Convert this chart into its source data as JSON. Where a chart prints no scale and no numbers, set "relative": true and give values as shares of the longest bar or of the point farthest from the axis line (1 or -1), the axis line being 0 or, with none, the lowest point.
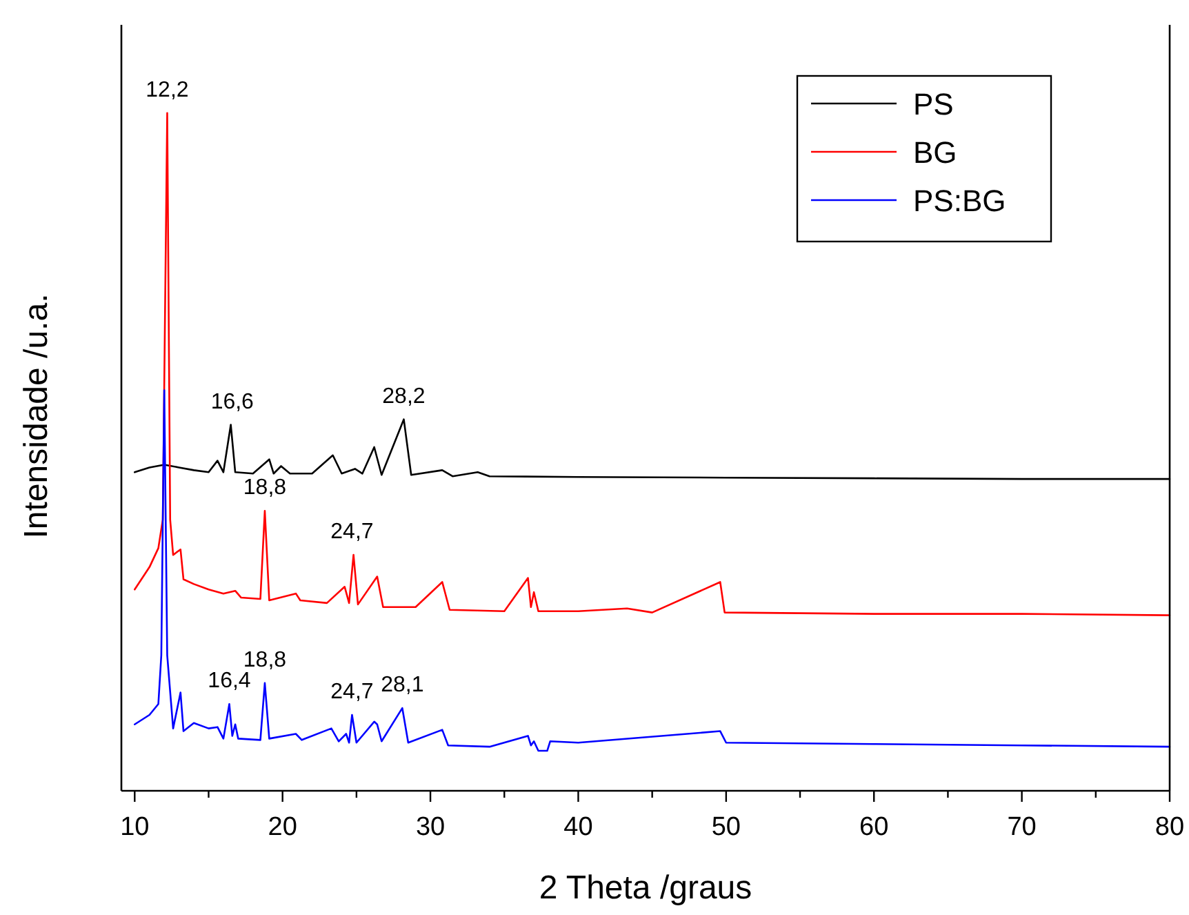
{
  "chart_data": {
    "type": "line",
    "relative": true,
    "xlabel": "2 Theta /graus",
    "ylabel": "Intensidade /u.a.",
    "xlim": [
      9.1,
      80
    ],
    "xticks": [
      10,
      {
        "value": 15,
        "label": null
      },
      20,
      {
        "value": 25,
        "label": null
      },
      30,
      {
        "value": 35,
        "label": null
      },
      40,
      {
        "value": 45,
        "label": null
      },
      50,
      {
        "value": 55,
        "label": null
      },
      60,
      {
        "value": 65,
        "label": null
      },
      70,
      {
        "value": 75,
        "label": null
      },
      80
    ],
    "legend": "top right",
    "line_style": "solid",
    "marker": "none",
    "grid": false,
    "series": [
      {
        "name": "PS",
        "color": "#000000",
        "x": [
          10,
          11,
          12,
          13,
          14,
          15,
          15.6,
          16,
          16.5,
          16.8,
          18,
          19.1,
          19.4,
          19.9,
          20.5,
          22,
          23.4,
          24,
          24.9,
          25.4,
          26.2,
          26.7,
          28.2,
          28.7,
          30.8,
          31.5,
          33.2,
          34,
          40,
          50,
          60,
          70,
          80
        ],
        "values": [
          0.47,
          0.477,
          0.481,
          0.477,
          0.473,
          0.47,
          0.487,
          0.47,
          0.54,
          0.47,
          0.468,
          0.489,
          0.468,
          0.479,
          0.468,
          0.468,
          0.495,
          0.468,
          0.475,
          0.468,
          0.507,
          0.466,
          0.548,
          0.466,
          0.473,
          0.464,
          0.47,
          0.464,
          0.463,
          0.462,
          0.461,
          0.46,
          0.46
        ]
      },
      {
        "name": "BG",
        "color": "#ff0000",
        "x": [
          10,
          11,
          11.6,
          11.9,
          12.2,
          12.4,
          12.6,
          13.1,
          13.3,
          14,
          15,
          16,
          16.8,
          17.2,
          18.5,
          18.8,
          19.1,
          20.9,
          21.2,
          23,
          24.2,
          24.5,
          24.8,
          25.1,
          26.4,
          26.8,
          29,
          30.8,
          31.3,
          35,
          36.6,
          36.8,
          37,
          37.3,
          40,
          43.3,
          45,
          49.6,
          49.9,
          55,
          60,
          70,
          80
        ],
        "values": [
          0.297,
          0.33,
          0.358,
          0.4,
          1.0,
          0.4,
          0.348,
          0.356,
          0.312,
          0.305,
          0.297,
          0.291,
          0.295,
          0.285,
          0.283,
          0.413,
          0.281,
          0.291,
          0.281,
          0.277,
          0.301,
          0.277,
          0.348,
          0.275,
          0.316,
          0.271,
          0.271,
          0.308,
          0.267,
          0.265,
          0.314,
          0.271,
          0.293,
          0.265,
          0.265,
          0.269,
          0.263,
          0.308,
          0.263,
          0.262,
          0.261,
          0.261,
          0.259
        ]
      },
      {
        "name": "PS:BG",
        "color": "#0000ff",
        "x": [
          10,
          11,
          11.6,
          11.8,
          12.0,
          12.2,
          12.6,
          13.1,
          13.3,
          14,
          15,
          15.6,
          16,
          16.4,
          16.6,
          16.8,
          17,
          18.5,
          18.8,
          19.1,
          20.9,
          21.3,
          23.3,
          23.8,
          24.3,
          24.5,
          24.7,
          25,
          26.2,
          26.4,
          26.7,
          28.1,
          28.5,
          30.8,
          31.2,
          34,
          36.6,
          36.8,
          37,
          37.3,
          37.9,
          38.1,
          40,
          49.6,
          50,
          60,
          70,
          80
        ],
        "values": [
          0.098,
          0.112,
          0.128,
          0.2,
          0.591,
          0.2,
          0.092,
          0.145,
          0.088,
          0.1,
          0.092,
          0.094,
          0.077,
          0.128,
          0.081,
          0.098,
          0.077,
          0.075,
          0.159,
          0.077,
          0.084,
          0.075,
          0.092,
          0.073,
          0.084,
          0.071,
          0.112,
          0.071,
          0.102,
          0.098,
          0.073,
          0.122,
          0.071,
          0.09,
          0.067,
          0.065,
          0.081,
          0.067,
          0.073,
          0.059,
          0.059,
          0.073,
          0.071,
          0.088,
          0.071,
          0.069,
          0.067,
          0.065
        ]
      }
    ],
    "annotations": [
      {
        "text": "12,2",
        "x": 12.2,
        "y": 1.0
      },
      {
        "text": "16,6",
        "x": 16.6,
        "y": 0.54
      },
      {
        "text": "28,2",
        "x": 28.2,
        "y": 0.548
      },
      {
        "text": "18,8",
        "x": 18.8,
        "y": 0.413
      },
      {
        "text": "24,7",
        "x": 24.7,
        "y": 0.348
      },
      {
        "text": "16,4",
        "x": 16.4,
        "y": 0.128
      },
      {
        "text": "18,8",
        "x": 18.8,
        "y": 0.159
      },
      {
        "text": "24,7",
        "x": 24.7,
        "y": 0.112
      },
      {
        "text": "28,1",
        "x": 28.1,
        "y": 0.122
      }
    ]
  }
}
